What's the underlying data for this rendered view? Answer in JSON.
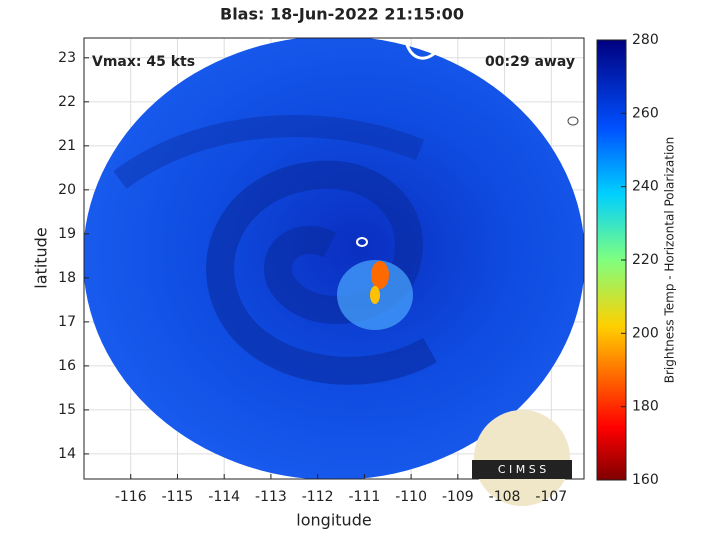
{
  "chart_data": {
    "type": "map",
    "title": "Blas: 18-Jun-2022 21:15:00",
    "annotations": [
      "Vmax: 45 kts",
      "00:29 away"
    ],
    "xlabel": "longitude",
    "ylabel": "latitude",
    "xlim": [
      -117.0,
      -106.3
    ],
    "ylim": [
      13.43,
      23.45
    ],
    "xticks": [
      -116,
      -115,
      -114,
      -113,
      -112,
      -111,
      -110,
      -109,
      -108,
      -107
    ],
    "yticks": [
      14,
      15,
      16,
      17,
      18,
      19,
      20,
      21,
      22,
      23
    ],
    "grid": true,
    "colorbar": {
      "label": "Brightness Temp - Horizontal Polarization",
      "lim": [
        160,
        280
      ],
      "ticks": [
        160,
        180,
        200,
        220,
        240,
        260,
        280
      ]
    },
    "logo": "C I M S S"
  }
}
